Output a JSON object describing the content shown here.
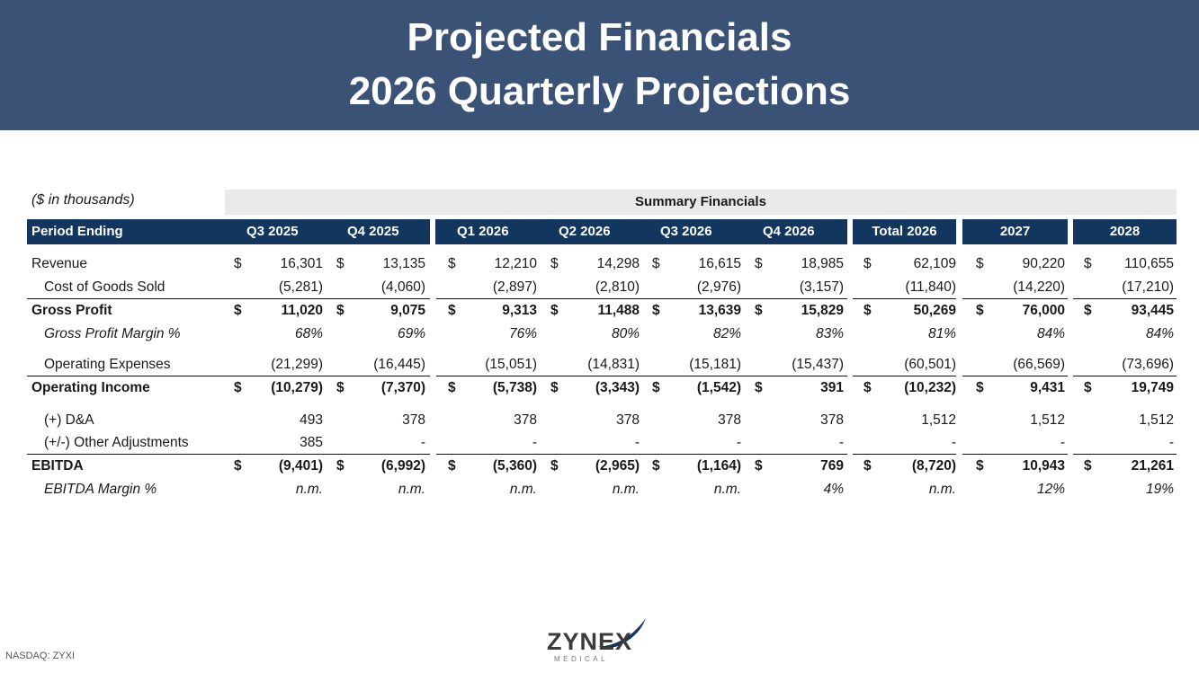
{
  "header": {
    "title_line1": "Projected Financials",
    "title_line2": "2026 Quarterly Projections"
  },
  "units_note": "($ in thousands)",
  "summary_label": "Summary Financials",
  "columns": {
    "period_label": "Period Ending",
    "q3_2025": "Q3 2025",
    "q4_2025": "Q4 2025",
    "q1_2026": "Q1 2026",
    "q2_2026": "Q2 2026",
    "q3_2026": "Q3 2026",
    "q4_2026": "Q4 2026",
    "total_2026": "Total 2026",
    "y2027": "2027",
    "y2028": "2028"
  },
  "rows": [
    {
      "label": "Revenue",
      "values": [
        "16,301",
        "13,135",
        "12,210",
        "14,298",
        "16,615",
        "18,985",
        "62,109",
        "90,220",
        "110,655"
      ]
    },
    {
      "label": "Cost of Goods Sold",
      "values": [
        "(5,281)",
        "(4,060)",
        "(2,897)",
        "(2,810)",
        "(2,976)",
        "(3,157)",
        "(11,840)",
        "(14,220)",
        "(17,210)"
      ]
    },
    {
      "label": "Gross Profit",
      "values": [
        "11,020",
        "9,075",
        "9,313",
        "11,488",
        "13,639",
        "15,829",
        "50,269",
        "76,000",
        "93,445"
      ]
    },
    {
      "label": "Gross Profit Margin %",
      "values": [
        "68%",
        "69%",
        "76%",
        "80%",
        "82%",
        "83%",
        "81%",
        "84%",
        "84%"
      ]
    },
    {
      "label": "Operating Expenses",
      "values": [
        "(21,299)",
        "(16,445)",
        "(15,051)",
        "(14,831)",
        "(15,181)",
        "(15,437)",
        "(60,501)",
        "(66,569)",
        "(73,696)"
      ]
    },
    {
      "label": "Operating Income",
      "values": [
        "(10,279)",
        "(7,370)",
        "(5,738)",
        "(3,343)",
        "(1,542)",
        "391",
        "(10,232)",
        "9,431",
        "19,749"
      ]
    },
    {
      "label": "(+) D&A",
      "values": [
        "493",
        "378",
        "378",
        "378",
        "378",
        "378",
        "1,512",
        "1,512",
        "1,512"
      ]
    },
    {
      "label": "(+/-) Other Adjustments",
      "values": [
        "385",
        "-",
        "-",
        "-",
        "-",
        "-",
        "-",
        "-",
        "-"
      ]
    },
    {
      "label": "EBITDA",
      "values": [
        "(9,401)",
        "(6,992)",
        "(5,360)",
        "(2,965)",
        "(1,164)",
        "769",
        "(8,720)",
        "10,943",
        "21,261"
      ]
    },
    {
      "label": "EBITDA Margin %",
      "values": [
        "n.m.",
        "n.m.",
        "n.m.",
        "n.m.",
        "n.m.",
        "4%",
        "n.m.",
        "12%",
        "19%"
      ]
    }
  ],
  "currency_symbol": "$",
  "footer": {
    "ticker": "NASDAQ: ZYXI",
    "logo_text": "ZYNEX",
    "logo_sub": "MEDICAL"
  },
  "colors": {
    "header_bg": "#3a5276",
    "table_header_bg": "#12365e",
    "summary_band_bg": "#eaeaea"
  }
}
